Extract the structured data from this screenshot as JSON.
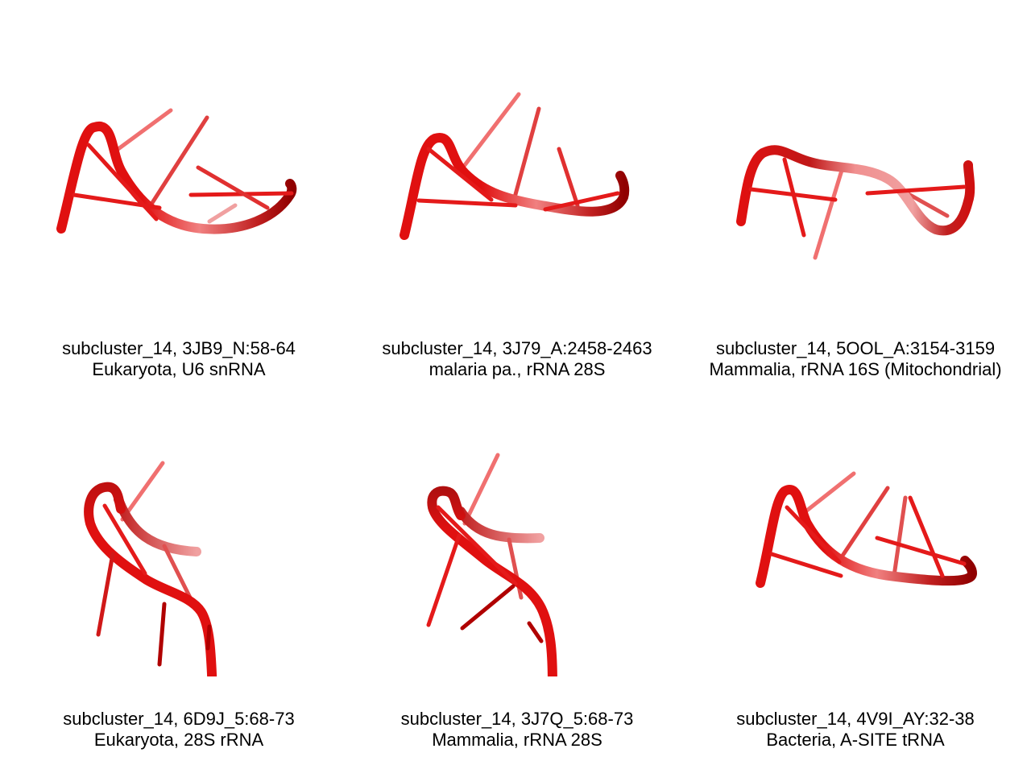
{
  "panels": [
    {
      "id": "3JB9_N:58-64",
      "title": "subcluster_14, 3JB9_N:58-64",
      "subtitle": "Eukaryota, U6 snRNA"
    },
    {
      "id": "3J79_A:2458-2463",
      "title": "subcluster_14, 3J79_A:2458-2463",
      "subtitle": "malaria pa., rRNA 28S"
    },
    {
      "id": "5OOL_A:3154-3159",
      "title": "subcluster_14, 5OOL_A:3154-3159",
      "subtitle": "Mammalia, rRNA 16S (Mitochondrial)"
    },
    {
      "id": "6D9J_5:68-73",
      "title": "subcluster_14, 6D9J_5:68-73",
      "subtitle": "Eukaryota, 28S rRNA"
    },
    {
      "id": "3J7Q_5:68-73",
      "title": "subcluster_14, 3J7Q_5:68-73",
      "subtitle": "Mammalia, rRNA 28S"
    },
    {
      "id": "4V9I_AY:32-38",
      "title": "subcluster_14, 4V9I_AY:32-38",
      "subtitle": "Bacteria, A-SITE tRNA"
    }
  ],
  "colors": {
    "backbone": "#e01010",
    "backbone_light": "#f07070",
    "backbone_dark": "#a00000",
    "base": "#e41a1a"
  }
}
